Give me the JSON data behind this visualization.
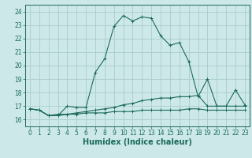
{
  "xlabel": "Humidex (Indice chaleur)",
  "bg_color": "#cde8e8",
  "grid_color": "#aacccc",
  "line_color": "#1a6b5a",
  "x_values": [
    0,
    1,
    2,
    3,
    4,
    5,
    6,
    7,
    8,
    9,
    10,
    11,
    12,
    13,
    14,
    15,
    16,
    17,
    18,
    19,
    20,
    21,
    22,
    23
  ],
  "series1": [
    16.8,
    16.7,
    16.3,
    16.3,
    17.0,
    16.9,
    16.9,
    19.5,
    20.5,
    22.9,
    23.7,
    23.3,
    23.6,
    23.5,
    22.2,
    21.5,
    21.7,
    20.3,
    17.7,
    19.0,
    17.0,
    17.0,
    18.2,
    17.1
  ],
  "series2": [
    16.8,
    16.7,
    16.3,
    16.4,
    16.4,
    16.5,
    16.6,
    16.7,
    16.8,
    16.9,
    17.1,
    17.2,
    17.4,
    17.5,
    17.6,
    17.6,
    17.7,
    17.7,
    17.8,
    17.0,
    17.0,
    17.0,
    17.0,
    17.0
  ],
  "series3": [
    16.8,
    16.7,
    16.3,
    16.3,
    16.4,
    16.4,
    16.5,
    16.5,
    16.5,
    16.6,
    16.6,
    16.6,
    16.7,
    16.7,
    16.7,
    16.7,
    16.7,
    16.8,
    16.8,
    16.7,
    16.7,
    16.7,
    16.7,
    16.7
  ],
  "ylim": [
    15.5,
    24.5
  ],
  "yticks": [
    16,
    17,
    18,
    19,
    20,
    21,
    22,
    23,
    24
  ],
  "xticks": [
    0,
    1,
    2,
    3,
    4,
    5,
    6,
    7,
    8,
    9,
    10,
    11,
    12,
    13,
    14,
    15,
    16,
    17,
    18,
    19,
    20,
    21,
    22,
    23
  ],
  "tick_fontsize": 5.5,
  "xlabel_fontsize": 7.0
}
